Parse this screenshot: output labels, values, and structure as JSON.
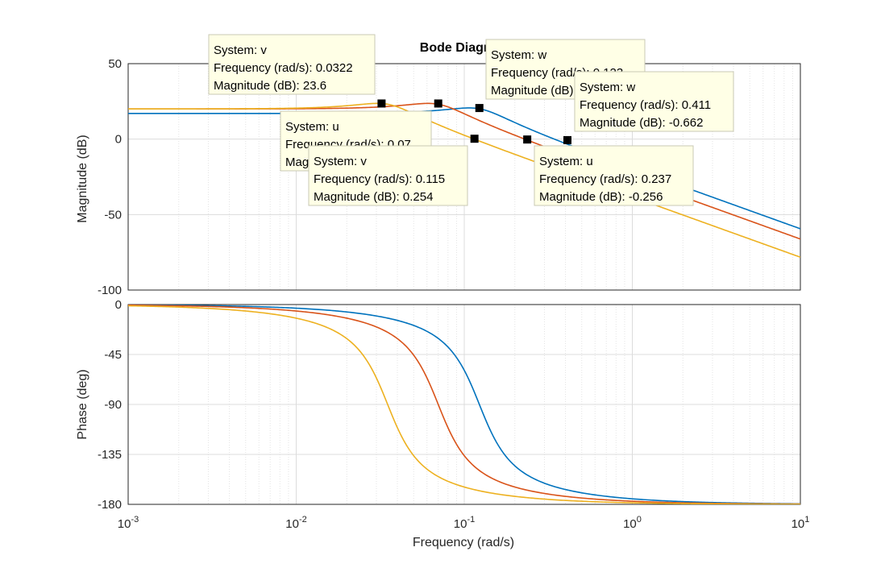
{
  "chart_data": {
    "type": "line",
    "title": "Bode Diagram",
    "xlabel": "Frequency  (rad/s)",
    "x_scale": "log",
    "xlim": [
      0.001,
      10
    ],
    "x_ticks": [
      {
        "value": 0.001,
        "base": "10",
        "exp": "-3"
      },
      {
        "value": 0.01,
        "base": "10",
        "exp": "-2"
      },
      {
        "value": 0.1,
        "base": "10",
        "exp": "-1"
      },
      {
        "value": 1,
        "base": "10",
        "exp": "0"
      },
      {
        "value": 10,
        "base": "10",
        "exp": "1"
      }
    ],
    "grid": true,
    "colors": {
      "w": "#0072bd",
      "u": "#d95319",
      "v": "#edb120"
    },
    "systems": [
      {
        "name": "w",
        "dc_gain_db": 17,
        "natural_freq": 0.123,
        "damping": 0.35
      },
      {
        "name": "u",
        "dc_gain_db": 20,
        "natural_freq": 0.07,
        "damping": 0.35
      },
      {
        "name": "v",
        "dc_gain_db": 20,
        "natural_freq": 0.035,
        "damping": 0.35
      }
    ],
    "magnitude": {
      "ylabel": "Magnitude (dB)",
      "ylim": [
        -100,
        50
      ],
      "y_ticks": [
        50,
        0,
        -50,
        -100
      ],
      "markers": [
        {
          "system": "v",
          "freq": 0.0322,
          "db": 23.6
        },
        {
          "system": "u",
          "freq": 0.07,
          "db": 23.6
        },
        {
          "system": "w",
          "freq": 0.123,
          "db": 20.6
        },
        {
          "system": "v",
          "freq": 0.115,
          "db": 0.254
        },
        {
          "system": "u",
          "freq": 0.237,
          "db": -0.256
        },
        {
          "system": "w",
          "freq": 0.411,
          "db": -0.662
        }
      ]
    },
    "phase": {
      "ylabel": "Phase (deg)",
      "ylim": [
        -180,
        0
      ],
      "y_ticks": [
        0,
        -45,
        -90,
        -135,
        -180
      ]
    },
    "datatips": [
      {
        "lines": [
          "System: v",
          "Frequency (rad/s): 0.0322",
          "Magnitude (dB): 23.6"
        ]
      },
      {
        "lines": [
          "System: w",
          "Frequency (rad/s): 0.123",
          "Magnitude (dB): 20.6"
        ]
      },
      {
        "lines": [
          "System: w",
          "Frequency (rad/s): 0.411",
          "Magnitude (dB): -0.662"
        ]
      },
      {
        "lines": [
          "System: u",
          "Frequency (rad/s): 0.07",
          "Magnitude (dB): 23.6"
        ]
      },
      {
        "lines": [
          "System: v",
          "Frequency (rad/s): 0.115",
          "Magnitude (dB): 0.254"
        ]
      },
      {
        "lines": [
          "System: u",
          "Frequency (rad/s): 0.237",
          "Magnitude (dB): -0.256"
        ]
      }
    ]
  }
}
